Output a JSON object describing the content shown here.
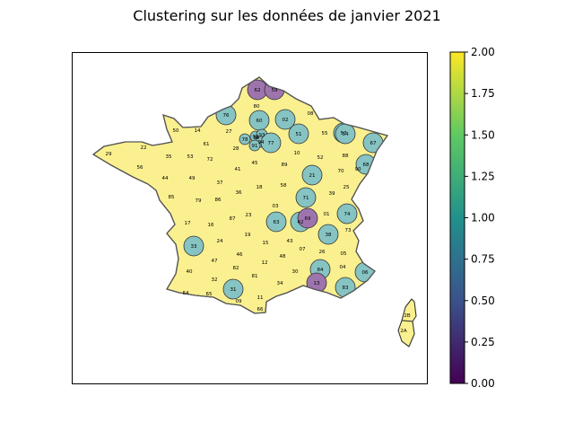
{
  "title": "Clustering sur les données de janvier 2021",
  "colors": {
    "cluster_0": "#9e74ad",
    "cluster_1": "#86c3c3",
    "cluster_2": "#fbf08f",
    "border": "#333333",
    "frame": "#000000"
  },
  "colorbar": {
    "min": 0.0,
    "max": 2.0,
    "ticks": [
      "0.00",
      "0.25",
      "0.50",
      "0.75",
      "1.00",
      "1.25",
      "1.50",
      "1.75",
      "2.00"
    ],
    "gradient": [
      "#440154",
      "#3b528b",
      "#21918c",
      "#5ec962",
      "#fde725"
    ]
  },
  "departments": [
    {
      "code": "62",
      "cluster": 0
    },
    {
      "code": "59",
      "cluster": 0
    },
    {
      "code": "80",
      "cluster": 2
    },
    {
      "code": "08",
      "cluster": 2
    },
    {
      "code": "76",
      "cluster": 1
    },
    {
      "code": "60",
      "cluster": 1
    },
    {
      "code": "02",
      "cluster": 1
    },
    {
      "code": "55",
      "cluster": 2
    },
    {
      "code": "57",
      "cluster": 1
    },
    {
      "code": "54",
      "cluster": 1
    },
    {
      "code": "67",
      "cluster": 1
    },
    {
      "code": "50",
      "cluster": 2
    },
    {
      "code": "14",
      "cluster": 2
    },
    {
      "code": "27",
      "cluster": 2
    },
    {
      "code": "95",
      "cluster": 1
    },
    {
      "code": "78",
      "cluster": 1
    },
    {
      "code": "92",
      "cluster": 1
    },
    {
      "code": "93",
      "cluster": 1
    },
    {
      "code": "94",
      "cluster": 1
    },
    {
      "code": "77",
      "cluster": 1
    },
    {
      "code": "51",
      "cluster": 1
    },
    {
      "code": "61",
      "cluster": 2
    },
    {
      "code": "28",
      "cluster": 2
    },
    {
      "code": "91",
      "cluster": 1
    },
    {
      "code": "10",
      "cluster": 2
    },
    {
      "code": "52",
      "cluster": 2
    },
    {
      "code": "88",
      "cluster": 2
    },
    {
      "code": "68",
      "cluster": 1
    },
    {
      "code": "22",
      "cluster": 2
    },
    {
      "code": "29",
      "cluster": 2
    },
    {
      "code": "35",
      "cluster": 2
    },
    {
      "code": "53",
      "cluster": 2
    },
    {
      "code": "72",
      "cluster": 2
    },
    {
      "code": "45",
      "cluster": 2
    },
    {
      "code": "89",
      "cluster": 2
    },
    {
      "code": "70",
      "cluster": 2
    },
    {
      "code": "90",
      "cluster": 2
    },
    {
      "code": "56",
      "cluster": 2
    },
    {
      "code": "44",
      "cluster": 2
    },
    {
      "code": "49",
      "cluster": 2
    },
    {
      "code": "41",
      "cluster": 2
    },
    {
      "code": "37",
      "cluster": 2
    },
    {
      "code": "21",
      "cluster": 1
    },
    {
      "code": "25",
      "cluster": 2
    },
    {
      "code": "58",
      "cluster": 2
    },
    {
      "code": "18",
      "cluster": 2
    },
    {
      "code": "85",
      "cluster": 2
    },
    {
      "code": "79",
      "cluster": 2
    },
    {
      "code": "86",
      "cluster": 2
    },
    {
      "code": "36",
      "cluster": 2
    },
    {
      "code": "71",
      "cluster": 1
    },
    {
      "code": "39",
      "cluster": 2
    },
    {
      "code": "01",
      "cluster": 2
    },
    {
      "code": "74",
      "cluster": 1
    },
    {
      "code": "03",
      "cluster": 2
    },
    {
      "code": "17",
      "cluster": 2
    },
    {
      "code": "16",
      "cluster": 2
    },
    {
      "code": "87",
      "cluster": 2
    },
    {
      "code": "23",
      "cluster": 2
    },
    {
      "code": "63",
      "cluster": 1
    },
    {
      "code": "42",
      "cluster": 1
    },
    {
      "code": "69",
      "cluster": 0
    },
    {
      "code": "73",
      "cluster": 2
    },
    {
      "code": "38",
      "cluster": 1
    },
    {
      "code": "33",
      "cluster": 1
    },
    {
      "code": "24",
      "cluster": 2
    },
    {
      "code": "19",
      "cluster": 2
    },
    {
      "code": "15",
      "cluster": 2
    },
    {
      "code": "43",
      "cluster": 2
    },
    {
      "code": "07",
      "cluster": 2
    },
    {
      "code": "26",
      "cluster": 2
    },
    {
      "code": "05",
      "cluster": 2
    },
    {
      "code": "47",
      "cluster": 2
    },
    {
      "code": "46",
      "cluster": 2
    },
    {
      "code": "48",
      "cluster": 2
    },
    {
      "code": "04",
      "cluster": 2
    },
    {
      "code": "06",
      "cluster": 1
    },
    {
      "code": "40",
      "cluster": 2
    },
    {
      "code": "82",
      "cluster": 2
    },
    {
      "code": "12",
      "cluster": 2
    },
    {
      "code": "30",
      "cluster": 2
    },
    {
      "code": "84",
      "cluster": 1
    },
    {
      "code": "32",
      "cluster": 2
    },
    {
      "code": "81",
      "cluster": 2
    },
    {
      "code": "34",
      "cluster": 2
    },
    {
      "code": "13",
      "cluster": 0
    },
    {
      "code": "83",
      "cluster": 1
    },
    {
      "code": "64",
      "cluster": 2
    },
    {
      "code": "65",
      "cluster": 2
    },
    {
      "code": "31",
      "cluster": 1
    },
    {
      "code": "11",
      "cluster": 2
    },
    {
      "code": "09",
      "cluster": 2
    },
    {
      "code": "66",
      "cluster": 2
    },
    {
      "code": "2B",
      "cluster": 2
    },
    {
      "code": "2A",
      "cluster": 2
    }
  ]
}
